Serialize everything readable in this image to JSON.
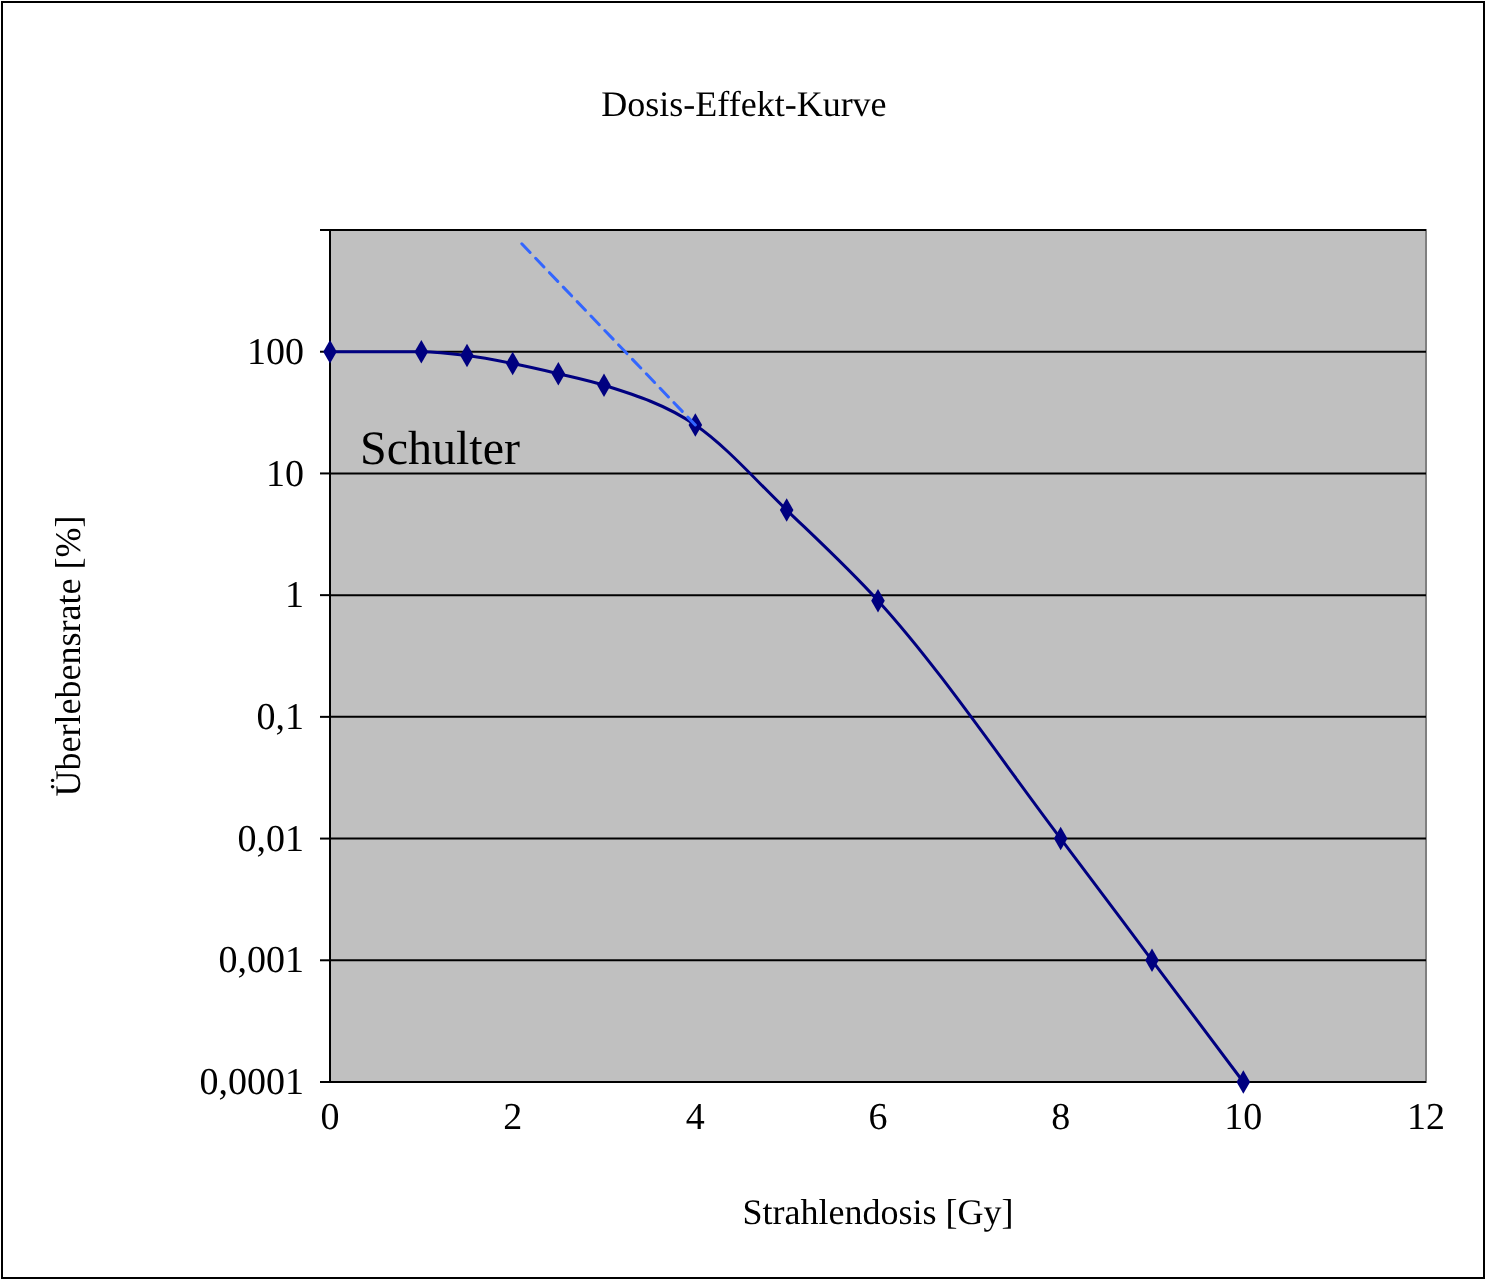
{
  "chart_data": {
    "type": "line",
    "title": "Dosis-Effekt-Kurve",
    "xlabel": "Strahlendosis [Gy]",
    "ylabel": "Überlebensrate [%]",
    "log": "y",
    "grid": "y",
    "xlim": [
      0,
      12
    ],
    "xticks": [
      0,
      2,
      4,
      6,
      8,
      10,
      12
    ],
    "ylim": [
      0.0001,
      1000
    ],
    "yticks": [
      {
        "value": 0.0001,
        "label": "0,0001"
      },
      {
        "value": 0.001,
        "label": "0,001"
      },
      {
        "value": 0.01,
        "label": "0,01"
      },
      {
        "value": 0.1,
        "label": "0,1"
      },
      1,
      10,
      100,
      {
        "value": 1000,
        "label": null
      }
    ],
    "annotations": [
      "Schulter"
    ],
    "series": [
      {
        "color": "#000080",
        "marker": "diamond",
        "line_style": "solid",
        "x": [
          0,
          1,
          1.5,
          2,
          2.5,
          3,
          4,
          5,
          6,
          8,
          9,
          10
        ],
        "values": [
          100,
          100,
          93,
          80,
          66,
          53,
          25,
          5,
          0.9,
          0.01,
          0.001,
          0.0001
        ]
      },
      {
        "color": "#3366ff",
        "marker": "none",
        "line_style": "dashed",
        "x": [
          2.1,
          4
        ],
        "values": [
          770,
          25
        ]
      }
    ]
  }
}
